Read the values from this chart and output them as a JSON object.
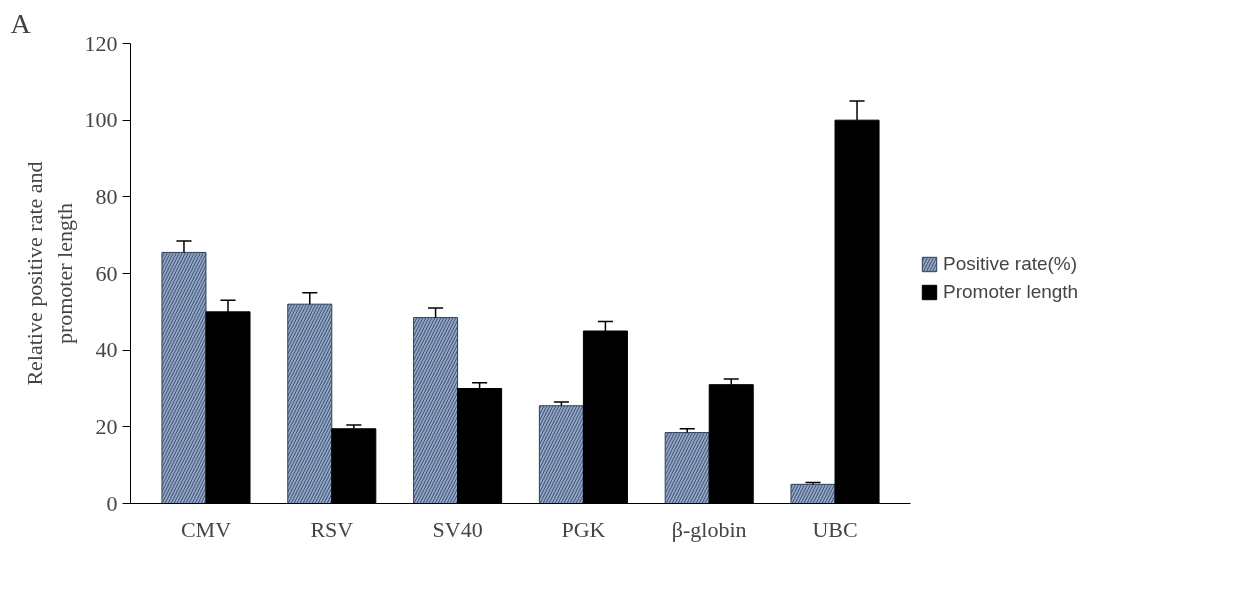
{
  "chart_data": {
    "type": "bar",
    "ylabel": "Relative positive rate and\npromoter length",
    "categories": [
      "CMV",
      "RSV",
      "SV40",
      "PGK",
      "β-globin",
      "UBC"
    ],
    "series": [
      {
        "name": "Positive rate(%)",
        "color": "#8fa3c4",
        "values": [
          65.5,
          52,
          48.5,
          25.5,
          18.5,
          5
        ],
        "errors": [
          [
            65.5,
            68.5
          ],
          [
            52,
            55
          ],
          [
            48.5,
            51
          ],
          [
            25.5,
            26.5
          ],
          [
            18.5,
            19.5
          ],
          [
            5,
            5.5
          ]
        ]
      },
      {
        "name": "Promoter length",
        "color": "#000000",
        "values": [
          50,
          19.5,
          30,
          45,
          31,
          100
        ],
        "errors": [
          [
            50,
            53
          ],
          [
            19.5,
            20.5
          ],
          [
            30,
            31.5
          ],
          [
            45,
            47.5
          ],
          [
            31,
            32.5
          ],
          [
            100,
            105
          ]
        ]
      }
    ],
    "ylim": [
      0,
      120
    ],
    "yticks": [
      0,
      20,
      40,
      60,
      80,
      100,
      120
    ],
    "grid": false,
    "legend": "right",
    "annotations": [
      "A"
    ]
  }
}
